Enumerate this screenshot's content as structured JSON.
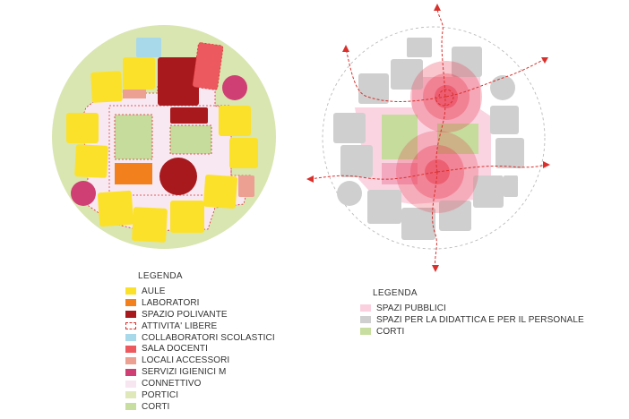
{
  "left_legend": {
    "title": "LEGENDA",
    "items": [
      {
        "label": "AULE",
        "color": "#fce12a",
        "style": "solid"
      },
      {
        "label": "LABORATORI",
        "color": "#f2811d",
        "style": "solid"
      },
      {
        "label": "SPAZIO POLIVANTE",
        "color": "#a8191d",
        "style": "solid"
      },
      {
        "label": "ATTIVITA' LIBERE",
        "color": "#d9302c",
        "style": "dashed"
      },
      {
        "label": "COLLABORATORI SCOLASTICI",
        "color": "#a8d9ea",
        "style": "solid"
      },
      {
        "label": "SALA DOCENTI",
        "color": "#ec5a60",
        "style": "solid"
      },
      {
        "label": "LOCALI ACCESSORI",
        "color": "#eca092",
        "style": "solid"
      },
      {
        "label": "SERVIZI IGIENICI M",
        "color": "#cf3f74",
        "style": "solid"
      },
      {
        "label": "CONNETTIVO",
        "color": "#f7e6f0",
        "style": "solid"
      },
      {
        "label": "PORTICI",
        "color": "#dfe8b8",
        "style": "solid"
      },
      {
        "label": "CORTI",
        "color": "#c7dea0",
        "style": "solid"
      }
    ]
  },
  "right_legend": {
    "title": "LEGENDA",
    "items": [
      {
        "label": "SPAZI PUBBLICI",
        "color": "#fad0de",
        "style": "solid"
      },
      {
        "label": "SPAZI PER LA DIDATTICA E PER IL PERSONALE",
        "color": "#cfcfcf",
        "style": "solid"
      },
      {
        "label": "CORTI",
        "color": "#c7dea0",
        "style": "solid"
      }
    ]
  }
}
